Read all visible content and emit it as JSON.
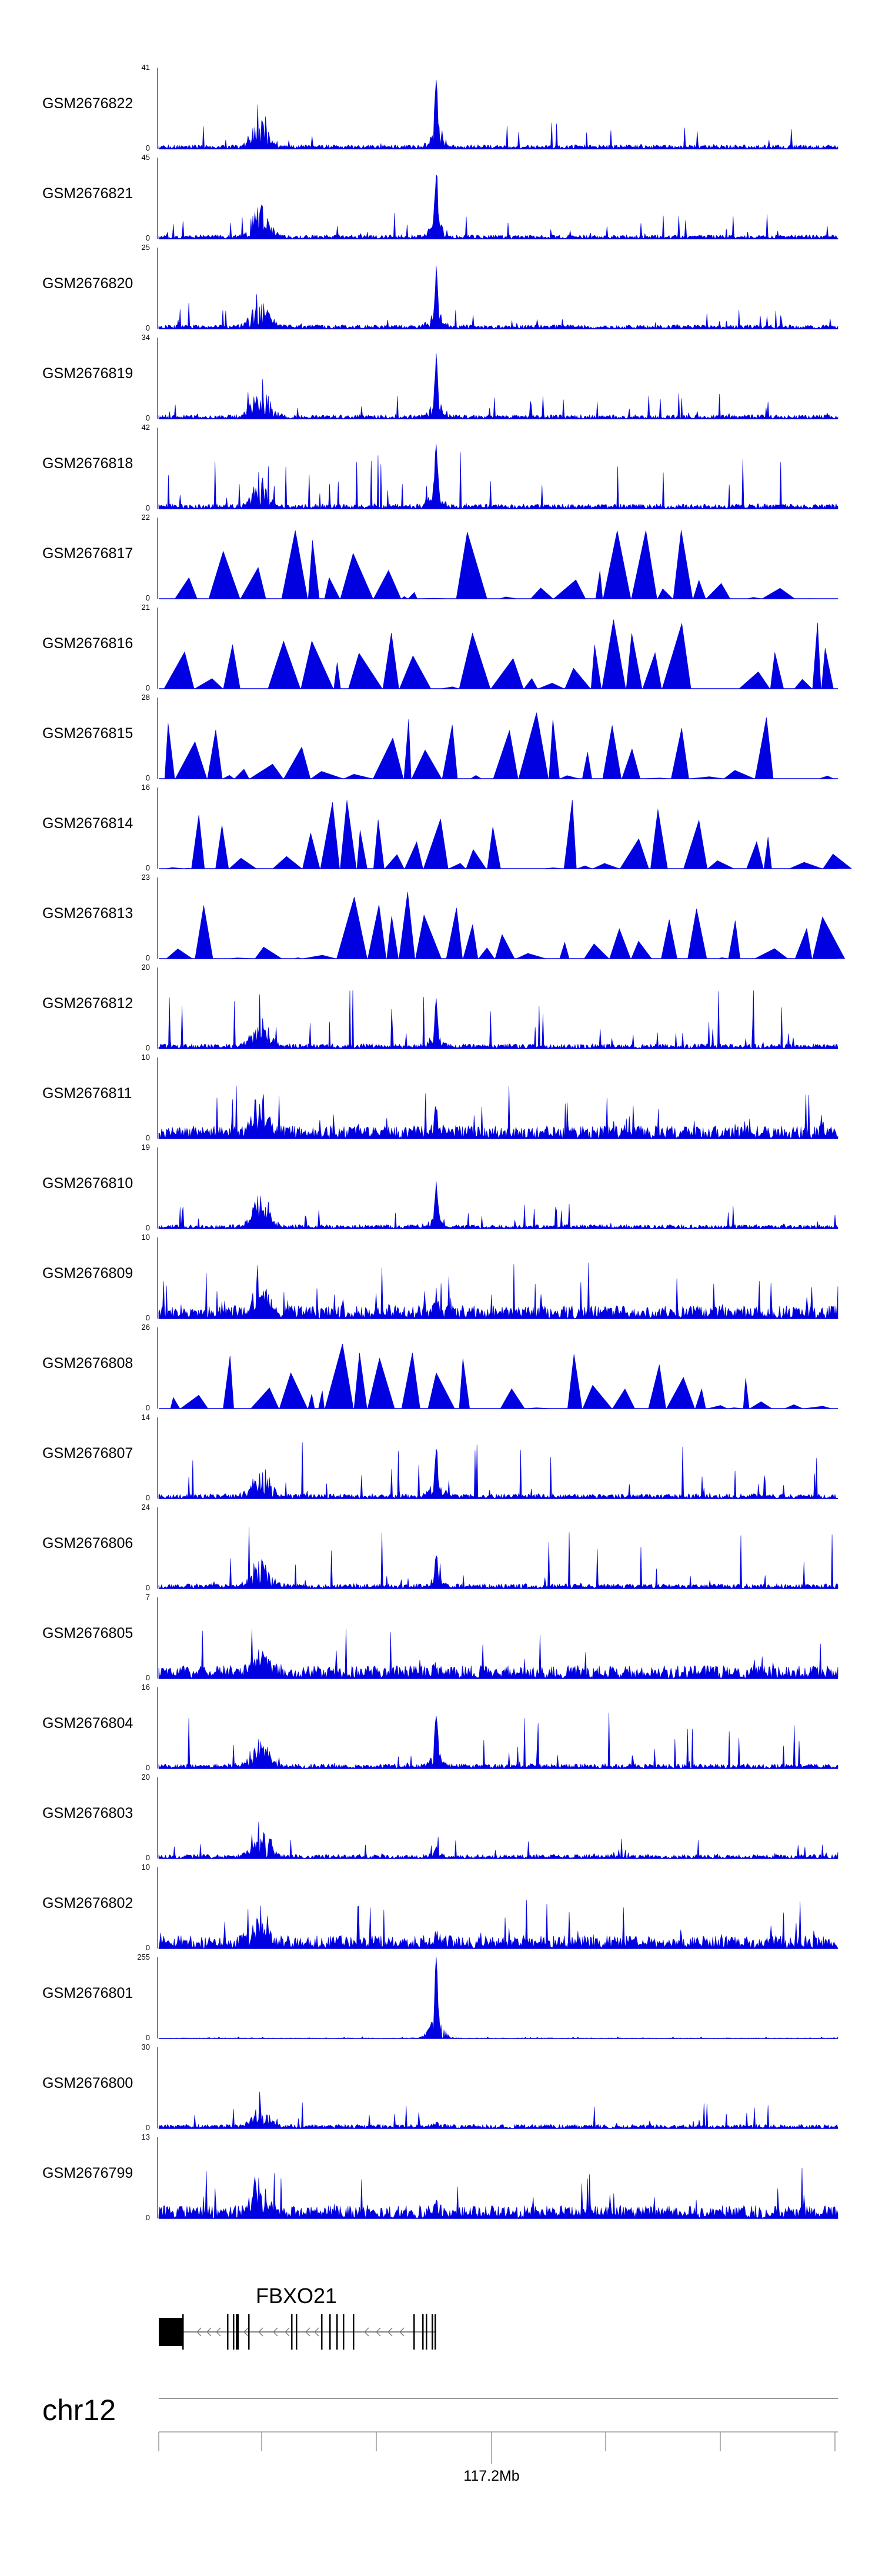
{
  "chart_data": {
    "type": "area",
    "tracks": [
      {
        "name": "GSM2676822",
        "ymax": 41,
        "ymin": 0,
        "profile": "sparse",
        "peak": 0.75
      },
      {
        "name": "GSM2676821",
        "ymax": 45,
        "ymin": 0,
        "profile": "sparse",
        "peak": 0.7
      },
      {
        "name": "GSM2676820",
        "ymax": 25,
        "ymin": 0,
        "profile": "sparse",
        "peak": 0.6
      },
      {
        "name": "GSM2676819",
        "ymax": 34,
        "ymin": 0,
        "profile": "sparse",
        "peak": 0.65
      },
      {
        "name": "GSM2676818",
        "ymax": 42,
        "ymin": 0,
        "profile": "spiky",
        "peak": 0.7
      },
      {
        "name": "GSM2676817",
        "ymax": 22,
        "ymin": 0,
        "profile": "triangles",
        "peak": 0
      },
      {
        "name": "GSM2676816",
        "ymax": 21,
        "ymin": 0,
        "profile": "triangles",
        "peak": 0
      },
      {
        "name": "GSM2676815",
        "ymax": 28,
        "ymin": 0,
        "profile": "triangles",
        "peak": 0
      },
      {
        "name": "GSM2676814",
        "ymax": 16,
        "ymin": 0,
        "profile": "triangles",
        "peak": 0
      },
      {
        "name": "GSM2676813",
        "ymax": 23,
        "ymin": 0,
        "profile": "triangles",
        "peak": 0
      },
      {
        "name": "GSM2676812",
        "ymax": 20,
        "ymin": 0,
        "profile": "spiky",
        "peak": 0.5
      },
      {
        "name": "GSM2676811",
        "ymax": 10,
        "ymin": 0,
        "profile": "dense",
        "peak": 0.25
      },
      {
        "name": "GSM2676810",
        "ymax": 19,
        "ymin": 0,
        "profile": "sparse",
        "peak": 0.5
      },
      {
        "name": "GSM2676809",
        "ymax": 10,
        "ymin": 0,
        "profile": "dense",
        "peak": 0.2
      },
      {
        "name": "GSM2676808",
        "ymax": 26,
        "ymin": 0,
        "profile": "triangles",
        "peak": 0
      },
      {
        "name": "GSM2676807",
        "ymax": 14,
        "ymin": 0,
        "profile": "spiky",
        "peak": 0.5
      },
      {
        "name": "GSM2676806",
        "ymax": 24,
        "ymin": 0,
        "profile": "spiky",
        "peak": 0.35
      },
      {
        "name": "GSM2676805",
        "ymax": 7,
        "ymin": 0,
        "profile": "dense",
        "peak": 0.05
      },
      {
        "name": "GSM2676804",
        "ymax": 16,
        "ymin": 0,
        "profile": "spiky",
        "peak": 0.55
      },
      {
        "name": "GSM2676803",
        "ymax": 20,
        "ymin": 0,
        "profile": "sparse",
        "peak": 0.1
      },
      {
        "name": "GSM2676802",
        "ymax": 10,
        "ymin": 0,
        "profile": "dense",
        "peak": 0.1
      },
      {
        "name": "GSM2676801",
        "ymax": 255,
        "ymin": 0,
        "profile": "flat",
        "peak": 0.95
      },
      {
        "name": "GSM2676800",
        "ymax": 30,
        "ymin": 0,
        "profile": "sparse",
        "peak": 0.05
      },
      {
        "name": "GSM2676799",
        "ymax": 13,
        "ymin": 0,
        "profile": "dense",
        "peak": 0.1
      }
    ],
    "gene": {
      "name": "FBXO21",
      "strand": "-"
    },
    "chromosome": "chr12",
    "coordinate_label": "117.2Mb"
  }
}
